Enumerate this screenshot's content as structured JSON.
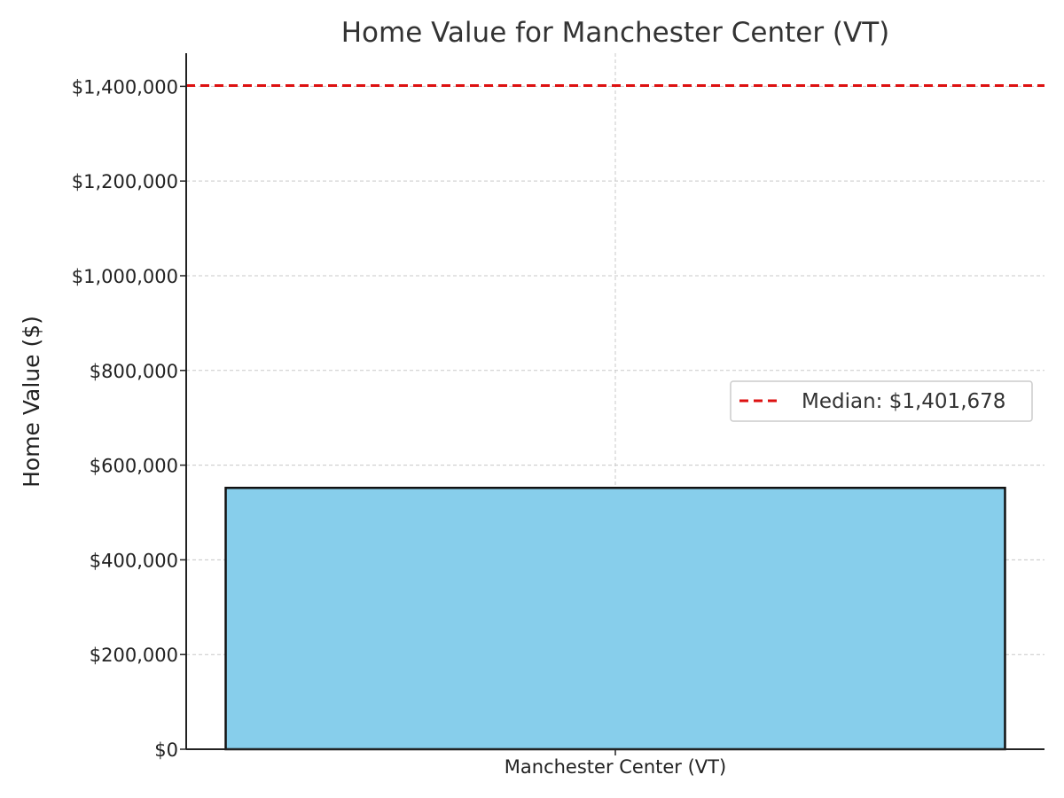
{
  "chart_data": {
    "type": "bar",
    "title": "Home Value for Manchester Center (VT)",
    "xlabel": "",
    "ylabel": "Home Value ($)",
    "categories": [
      "Manchester Center (VT)"
    ],
    "values": [
      552000
    ],
    "ylim": [
      0,
      1470000
    ],
    "yticks": [
      0,
      200000,
      400000,
      600000,
      800000,
      1000000,
      1200000,
      1400000
    ],
    "ytick_labels": [
      "$0",
      "$200,000",
      "$400,000",
      "$600,000",
      "$800,000",
      "$1,000,000",
      "$1,200,000",
      "$1,400,000"
    ],
    "reference_line": {
      "value": 1401678,
      "label": "Median: $1,401,678",
      "style": "dashed"
    },
    "grid": true,
    "legend_position": "center-right",
    "colors": {
      "bar": "#87ceeb",
      "bar_edge": "#111111",
      "median_line": "#dd1111",
      "grid": "#c8c8c8"
    }
  }
}
